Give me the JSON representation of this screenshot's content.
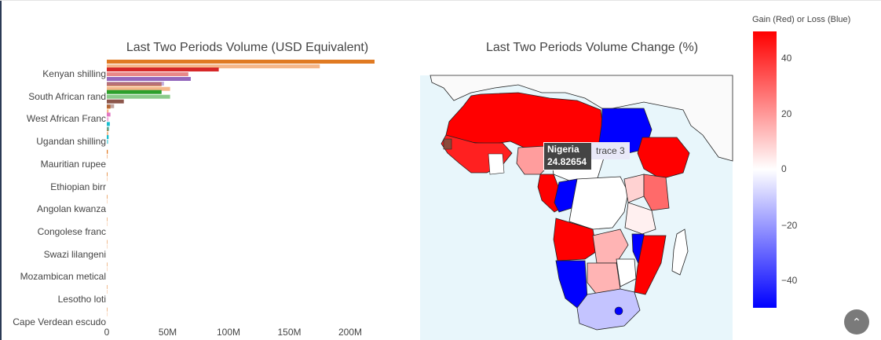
{
  "chart_data": [
    {
      "type": "bar",
      "orientation": "horizontal",
      "title": "Last Two Periods Volume (USD Equivalent)",
      "categories": [
        "Kenyan shilling",
        "South African rand",
        "West African Franc",
        "Ugandan shilling",
        "Mauritian rupee",
        "Ethiopian birr",
        "Angolan kwanza",
        "Congolese franc",
        "Swazi lilangeni",
        "Mozambican metical",
        "Lesotho loti",
        "Cape Verdean escudo"
      ],
      "x_ticks": [
        "0",
        "50M",
        "100M",
        "150M",
        "200M"
      ],
      "xlim": [
        0,
        230000000
      ],
      "series": [
        {
          "period": 1,
          "color": "#e07a22",
          "values": [
            220000000,
            45000000,
            3000000,
            1500000,
            800000,
            500000,
            400000,
            300000,
            200000,
            150000,
            100000,
            80000
          ]
        },
        {
          "period": 2,
          "color": "#f5b78a",
          "values": [
            175000000,
            52000000,
            1500000,
            1200000,
            600000,
            400000,
            300000,
            250000,
            150000,
            120000,
            80000,
            60000
          ]
        }
      ],
      "country_bars": [
        {
          "category": "Kenyan shilling",
          "color": "#d62728",
          "values": [
            92000000,
            67000000
          ]
        },
        {
          "category": "Kenyan shilling",
          "color": "#9467bd",
          "values": [
            69000000,
            47000000
          ]
        },
        {
          "category": "South African rand",
          "color": "#2ca02c",
          "values": [
            45000000,
            52000000
          ]
        },
        {
          "category": "South African rand",
          "color": "#8c564b",
          "values": [
            14000000,
            6000000
          ]
        },
        {
          "category": "West African Franc",
          "color": "#e377c2",
          "values": [
            3000000,
            1500000
          ]
        },
        {
          "category": "West African Franc",
          "color": "#17becf",
          "values": [
            2500000,
            2000000
          ]
        },
        {
          "category": "Ugandan shilling",
          "color": "#17becf",
          "values": [
            1500000,
            1200000
          ]
        }
      ]
    },
    {
      "type": "choropleth",
      "title": "Last Two Periods Volume Change (%)",
      "colorbar_title": "Gain (Red) or Loss (Blue)",
      "colorbar_ticks": [
        "40",
        "20",
        "0",
        "−20",
        "−40"
      ],
      "zrange": [
        -50,
        50
      ],
      "colorscale": [
        "#0000ff",
        "#ffffff",
        "#ff0000"
      ],
      "hover": {
        "country": "Nigeria",
        "value": "24.82654",
        "trace": "trace 3"
      }
    }
  ],
  "ui": {
    "scroll_top_icon": "chevron-up-icon",
    "scroll_glyph": "⌃"
  }
}
